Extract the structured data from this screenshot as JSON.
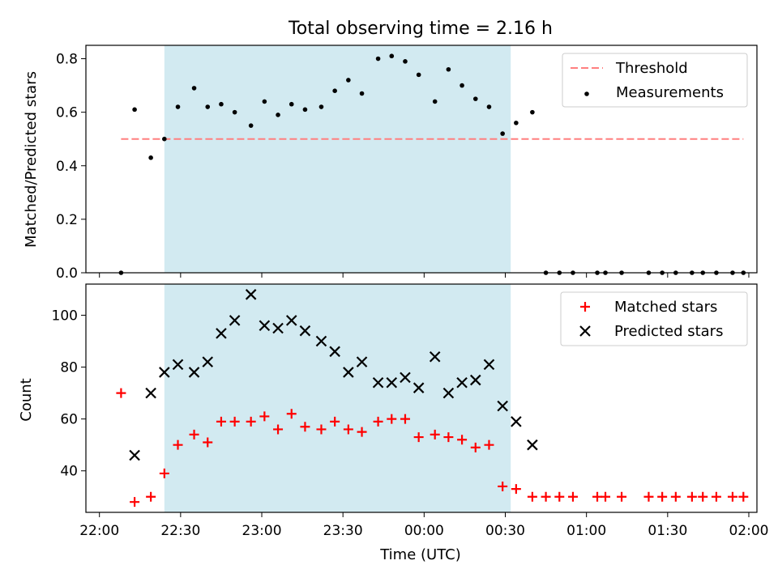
{
  "chart_data": [
    {
      "type": "scatter",
      "title": "Total observing time = 2.16 h",
      "ylabel": "Matched/Predicted stars",
      "xlabel": "",
      "xlim": [
        "22:00",
        "02:00"
      ],
      "ylim": [
        0,
        0.85
      ],
      "yticks": [
        "0.0",
        "0.2",
        "0.4",
        "0.6",
        "0.8"
      ],
      "grid": false,
      "legend": "top-right",
      "highlight_span": {
        "start": "22:24",
        "end": "00:32",
        "color": "#add8e6"
      },
      "series": [
        {
          "name": "Threshold",
          "style": "dashed-line",
          "color": "#ff7f7f",
          "x": [
            "22:08",
            "01:58"
          ],
          "y": [
            0.5,
            0.5
          ]
        },
        {
          "name": "Measurements",
          "style": "dot",
          "color": "#000000",
          "x": [
            "22:08",
            "22:13",
            "22:19",
            "22:24",
            "22:29",
            "22:35",
            "22:40",
            "22:45",
            "22:50",
            "22:56",
            "23:01",
            "23:06",
            "23:11",
            "23:16",
            "23:22",
            "23:27",
            "23:32",
            "23:37",
            "23:43",
            "23:48",
            "23:53",
            "23:58",
            "00:04",
            "00:09",
            "00:14",
            "00:19",
            "00:24",
            "00:29",
            "00:34",
            "00:40",
            "00:45",
            "00:50",
            "00:55",
            "01:04",
            "01:07",
            "01:13",
            "01:23",
            "01:28",
            "01:33",
            "01:39",
            "01:43",
            "01:48",
            "01:54",
            "01:58"
          ],
          "y": [
            0,
            0.61,
            0.43,
            0.5,
            0.62,
            0.69,
            0.62,
            0.63,
            0.6,
            0.55,
            0.64,
            0.59,
            0.63,
            0.61,
            0.62,
            0.68,
            0.72,
            0.67,
            0.8,
            0.81,
            0.79,
            0.74,
            0.64,
            0.76,
            0.7,
            0.65,
            0.62,
            0.52,
            0.56,
            0.6,
            0,
            0,
            0,
            0,
            0,
            0,
            0,
            0,
            0,
            0,
            0,
            0,
            0,
            0
          ]
        }
      ]
    },
    {
      "type": "scatter",
      "title": "",
      "ylabel": "Count",
      "xlabel": "Time (UTC)",
      "xlim": [
        "22:00",
        "02:00"
      ],
      "ylim": [
        24,
        112
      ],
      "yticks": [
        "40",
        "60",
        "80",
        "100"
      ],
      "xticks": [
        "22:00",
        "22:30",
        "23:00",
        "23:30",
        "00:00",
        "00:30",
        "01:00",
        "01:30",
        "02:00"
      ],
      "grid": false,
      "legend": "top-right",
      "highlight_span": {
        "start": "22:24",
        "end": "00:32",
        "color": "#add8e6"
      },
      "series": [
        {
          "name": "Matched stars",
          "marker": "+",
          "color": "#ff0000",
          "x": [
            "22:08",
            "22:13",
            "22:19",
            "22:24",
            "22:29",
            "22:35",
            "22:40",
            "22:45",
            "22:50",
            "22:56",
            "23:01",
            "23:06",
            "23:11",
            "23:16",
            "23:22",
            "23:27",
            "23:32",
            "23:37",
            "23:43",
            "23:48",
            "23:53",
            "23:58",
            "00:04",
            "00:09",
            "00:14",
            "00:19",
            "00:24",
            "00:29",
            "00:34",
            "00:40",
            "00:45",
            "00:50",
            "00:55",
            "01:04",
            "01:07",
            "01:13",
            "01:23",
            "01:28",
            "01:33",
            "01:39",
            "01:43",
            "01:48",
            "01:54",
            "01:58"
          ],
          "y": [
            70,
            28,
            30,
            39,
            50,
            54,
            51,
            59,
            59,
            59,
            61,
            56,
            62,
            57,
            56,
            59,
            56,
            55,
            59,
            60,
            60,
            53,
            54,
            53,
            52,
            49,
            50,
            34,
            33,
            30,
            30,
            30,
            30,
            30,
            30,
            30,
            30,
            30,
            30,
            30,
            30,
            30,
            30,
            30
          ]
        },
        {
          "name": "Predicted stars",
          "marker": "x",
          "color": "#000000",
          "x": [
            "22:13",
            "22:19",
            "22:24",
            "22:29",
            "22:35",
            "22:40",
            "22:45",
            "22:50",
            "22:56",
            "23:01",
            "23:06",
            "23:11",
            "23:16",
            "23:22",
            "23:27",
            "23:32",
            "23:37",
            "23:43",
            "23:48",
            "23:53",
            "23:58",
            "00:04",
            "00:09",
            "00:14",
            "00:19",
            "00:24",
            "00:29",
            "00:34",
            "00:40"
          ],
          "y": [
            46,
            70,
            78,
            81,
            78,
            82,
            93,
            98,
            108,
            96,
            95,
            98,
            94,
            90,
            86,
            78,
            82,
            74,
            74,
            76,
            72,
            84,
            70,
            74,
            75,
            81,
            65,
            59,
            50
          ]
        }
      ]
    }
  ]
}
